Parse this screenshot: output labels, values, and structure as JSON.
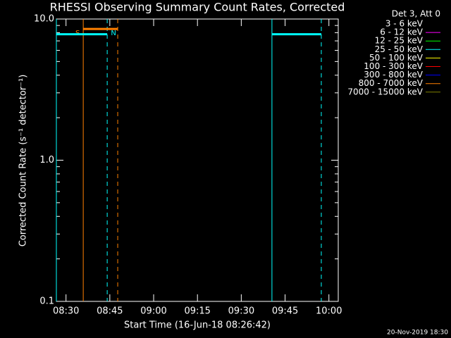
{
  "chart_data": {
    "type": "line",
    "title": "RHESSI Observing Summary Count Rates, Corrected",
    "xlabel": "Start Time (16-Jun-18 08:26:42)",
    "ylabel": "Corrected Count Rate (s⁻¹ detector⁻¹)",
    "footer": "20-Nov-2019 18:30",
    "legend_title": "Det 3, Att 0",
    "log_y": true,
    "xlim": [
      26.7,
      123.2
    ],
    "ylim": [
      0.1,
      10
    ],
    "xticks": [
      {
        "value": 30,
        "label": "08:30"
      },
      {
        "value": 45,
        "label": "08:45"
      },
      {
        "value": 60,
        "label": "09:00"
      },
      {
        "value": 75,
        "label": "09:15"
      },
      {
        "value": 90,
        "label": "09:30"
      },
      {
        "value": 105,
        "label": "09:45"
      },
      {
        "value": 120,
        "label": "10:00"
      }
    ],
    "yticks": [
      {
        "value": 0.1,
        "label": "0.1"
      },
      {
        "value": 1,
        "label": "1.0"
      },
      {
        "value": 10,
        "label": "10.0"
      }
    ],
    "series": [
      {
        "name": "3 - 6 keV",
        "color": "#000000"
      },
      {
        "name": "6 - 12 keV",
        "color": "#ff00ff"
      },
      {
        "name": "12 - 25 keV",
        "color": "#00ff00"
      },
      {
        "name": "25 - 50 keV",
        "color": "#00ffff",
        "x": [
          26.7,
          44.1,
          null,
          100.5,
          117.4
        ],
        "values": [
          7.8,
          7.8,
          null,
          7.8,
          7.8
        ]
      },
      {
        "name": "50 - 100 keV",
        "color": "#ffff00"
      },
      {
        "name": "100 - 300 keV",
        "color": "#ff0000"
      },
      {
        "name": "300 - 800 keV",
        "color": "#0000ff"
      },
      {
        "name": "800 - 7000 keV",
        "color": "#ff8000"
      },
      {
        "name": "7000 - 15000 keV",
        "color": "#808000"
      }
    ],
    "markers": [
      {
        "x": 26.7,
        "color": "#00ffff",
        "style": "solid"
      },
      {
        "x": 44.1,
        "color": "#00ffff",
        "style": "dashed"
      },
      {
        "x": 35.9,
        "color": "#ff8000",
        "style": "solid"
      },
      {
        "x": 47.7,
        "color": "#ff8000",
        "style": "dashed"
      },
      {
        "x": 100.5,
        "color": "#00ffff",
        "style": "solid"
      },
      {
        "x": 117.4,
        "color": "#00ffff",
        "style": "dashed"
      }
    ],
    "flags": [
      {
        "label": "S",
        "color": "#ff8000",
        "start": 35.9,
        "end": 47.7,
        "y": 8.5
      },
      {
        "label": "N",
        "color": "#00ffff",
        "start": 44.1,
        "y": 8.5
      }
    ]
  }
}
